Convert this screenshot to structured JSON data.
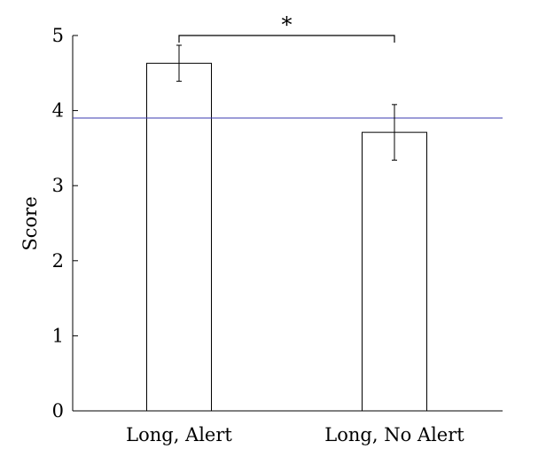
{
  "chart_data": {
    "type": "bar",
    "title": "",
    "xlabel": "",
    "ylabel": "Score",
    "ylim": [
      0,
      5
    ],
    "yticks": [
      0,
      1,
      2,
      3,
      4,
      5
    ],
    "categories": [
      "Long, Alert",
      "Long, No Alert"
    ],
    "series": [
      {
        "values": [
          4.63,
          3.71
        ],
        "error": [
          0.24,
          0.37
        ]
      }
    ],
    "reference_line": {
      "value": 3.9,
      "color": "#3b3bb0"
    },
    "significance": {
      "between": [
        0,
        1
      ],
      "label": "*"
    },
    "bar_fill": "#ffffff",
    "bar_stroke": "#000000",
    "grid": false,
    "legend": "none"
  }
}
